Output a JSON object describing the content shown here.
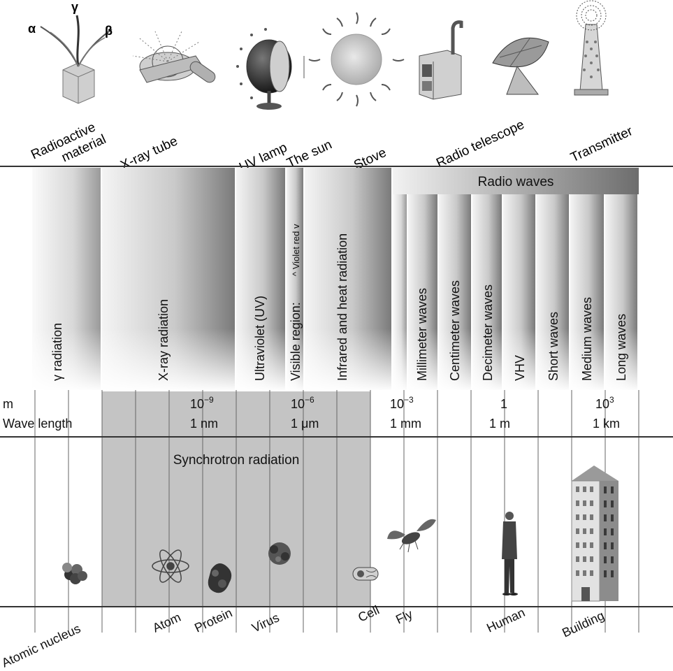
{
  "sources": [
    {
      "label": "Radioactive\nmaterial",
      "icon": "radioactive-material-icon"
    },
    {
      "label": "X-ray tube",
      "icon": "x-ray-tube-icon"
    },
    {
      "label": "UV lamp",
      "icon": "uv-lamp-icon"
    },
    {
      "label": "The sun",
      "icon": "sun-icon"
    },
    {
      "label": "Stove",
      "icon": "stove-icon"
    },
    {
      "label": "Radio telescope",
      "icon": "radio-telescope-icon"
    },
    {
      "label": "Transmitter",
      "icon": "transmitter-icon"
    }
  ],
  "source_icon_greek": {
    "alpha": "α",
    "gamma": "γ",
    "beta": "β"
  },
  "bands": [
    {
      "label": "γ radiation"
    },
    {
      "label": "X-ray radiation"
    },
    {
      "label": "Ultraviolet (UV)"
    },
    {
      "label": "Visible region:"
    },
    {
      "label": "Infrared and heat radiation"
    },
    {
      "label": "Millimeter waves"
    },
    {
      "label": "Centimeter waves"
    },
    {
      "label": "Decimeter waves"
    },
    {
      "label": "VHV"
    },
    {
      "label": "Short waves"
    },
    {
      "label": "Medium waves"
    },
    {
      "label": "Long waves"
    }
  ],
  "visible_detail": "^ Violet  red v",
  "radio_waves_label": "Radio waves",
  "scale": {
    "unit_label": "m",
    "row_label": "Wave length",
    "ticks": [
      {
        "power": "10",
        "exp": "−9",
        "named": "1 nm"
      },
      {
        "power": "10",
        "exp": "−6",
        "named": "1 μm"
      },
      {
        "power": "10",
        "exp": "−3",
        "named": "1 mm"
      },
      {
        "power": "1",
        "exp": "",
        "named": "1 m"
      },
      {
        "power": "10",
        "exp": "3",
        "named": "1 km"
      }
    ]
  },
  "synchrotron_label": "Synchrotron radiation",
  "objects": [
    {
      "label": "Atomic nucleus",
      "icon": "atomic-nucleus-icon"
    },
    {
      "label": "Atom",
      "icon": "atom-icon"
    },
    {
      "label": "Protein",
      "icon": "protein-icon"
    },
    {
      "label": "Virus",
      "icon": "virus-icon"
    },
    {
      "label": "Cell",
      "icon": "cell-icon"
    },
    {
      "label": "Fly",
      "icon": "fly-icon"
    },
    {
      "label": "Human",
      "icon": "human-icon"
    },
    {
      "label": "Building",
      "icon": "building-icon"
    }
  ]
}
